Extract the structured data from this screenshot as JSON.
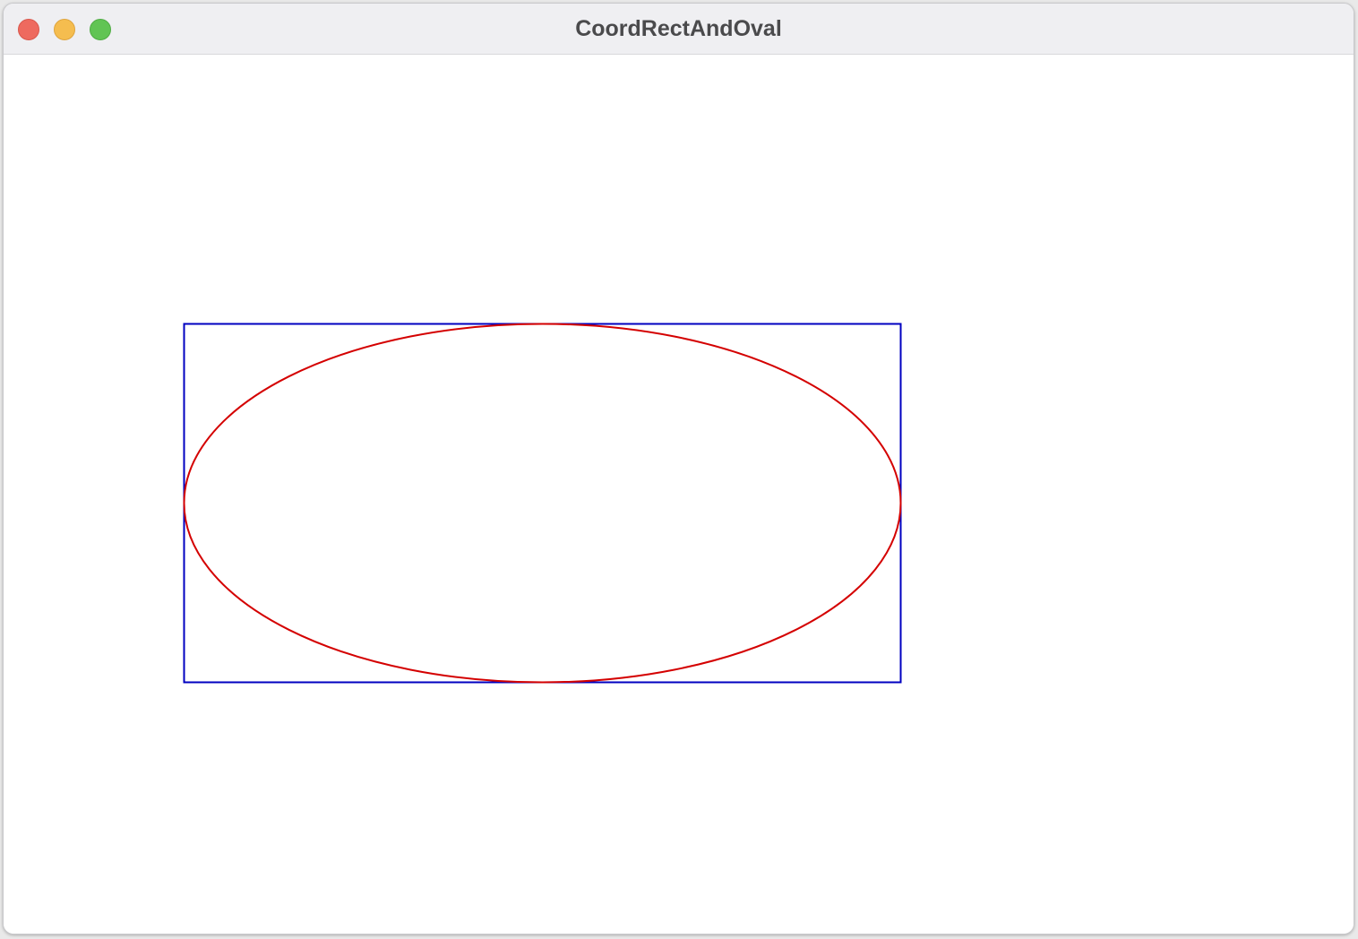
{
  "window": {
    "title": "CoordRectAndOval",
    "controls": {
      "close_color": "#ee6a5f",
      "minimize_color": "#f5bd4f",
      "zoom_color": "#61c454"
    }
  },
  "drawing": {
    "rectangle": {
      "stroke_color": "#0000c0"
    },
    "oval": {
      "stroke_color": "#d40000"
    }
  }
}
